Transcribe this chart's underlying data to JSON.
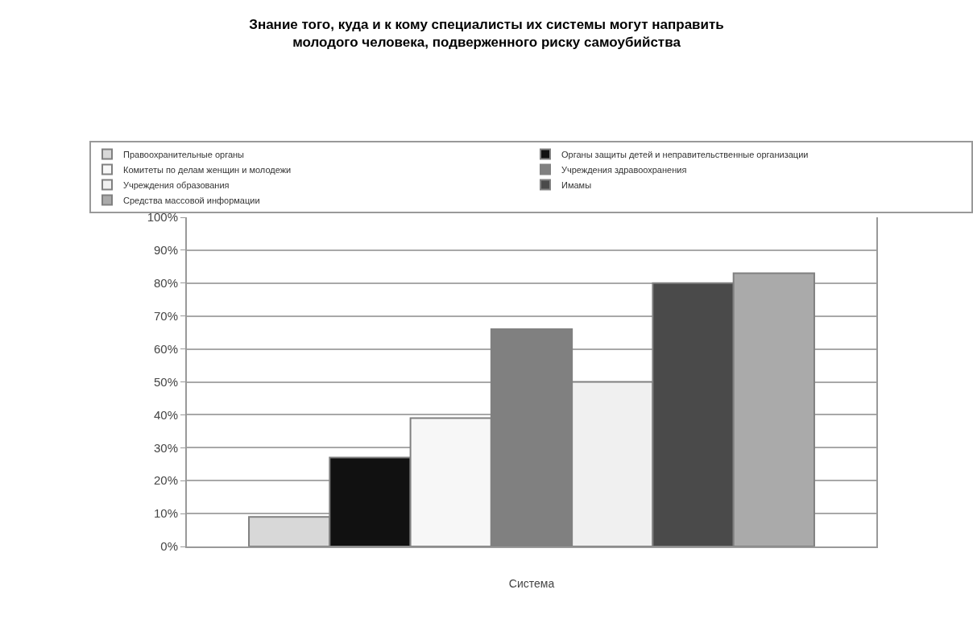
{
  "chart_data": {
    "type": "bar",
    "title": "Знание того, куда и к кому специалисты их системы могут направить\nмолодого человека, подверженного риску самоубийства",
    "xlabel": "Система",
    "categories": [
      null
    ],
    "series": [
      {
        "name": "Правоохранительные органы",
        "color": "#d8d8d8",
        "values": [
          9
        ]
      },
      {
        "name": "Органы защиты детей и неправительственные организации",
        "color": "#111111",
        "values": [
          27
        ]
      },
      {
        "name": "Комитеты по делам женщин и молодежи",
        "color": "#f7f7f7",
        "values": [
          39
        ]
      },
      {
        "name": "Учреждения здравоохранения",
        "color": "#808080",
        "values": [
          66
        ]
      },
      {
        "name": "Учреждения образования",
        "color": "#f0f0f0",
        "values": [
          50
        ]
      },
      {
        "name": "Имамы",
        "color": "#4a4a4a",
        "values": [
          80
        ]
      },
      {
        "name": "Средства массовой информации",
        "color": "#aaaaaa",
        "values": [
          83
        ]
      }
    ],
    "ylim": [
      0,
      100
    ],
    "yticks": [
      {
        "value": 0,
        "label": "0%"
      },
      {
        "value": 10,
        "label": "10%"
      },
      {
        "value": 20,
        "label": "20%"
      },
      {
        "value": 30,
        "label": "30%"
      },
      {
        "value": 40,
        "label": "40%"
      },
      {
        "value": 50,
        "label": "50%"
      },
      {
        "value": 60,
        "label": "60%"
      },
      {
        "value": 70,
        "label": "70%"
      },
      {
        "value": 80,
        "label": "80%"
      },
      {
        "value": 90,
        "label": "90%"
      },
      {
        "value": 100,
        "label": "100%"
      }
    ],
    "grid": "y",
    "legend": "top",
    "tick_labels": "y"
  }
}
